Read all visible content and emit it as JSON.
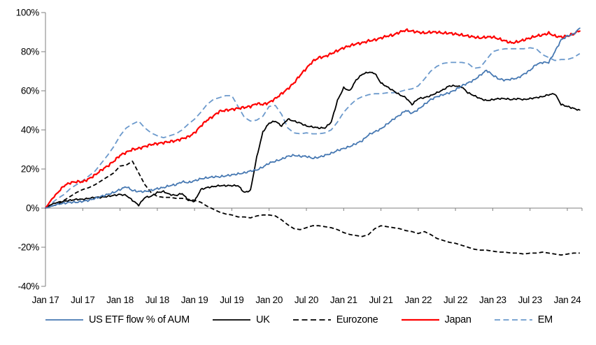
{
  "chart_data": {
    "type": "line",
    "title": "",
    "xlabel": "",
    "ylabel": "",
    "grid": false,
    "legend_position": "bottom",
    "axis_color": "#7f7f7f",
    "ylim": [
      -40,
      100
    ],
    "y_tick_labels": [
      "100%",
      "80%",
      "60%",
      "40%",
      "20%",
      "0%",
      "-20%",
      "-40%"
    ],
    "y_tick_values": [
      100,
      80,
      60,
      40,
      20,
      0,
      -20,
      -40
    ],
    "x_tick_labels": [
      "Jan 17",
      "Jul 17",
      "Jan 18",
      "Jul 18",
      "Jan 19",
      "Jul 19",
      "Jan 20",
      "Jul 20",
      "Jan 21",
      "Jul 21",
      "Jan 22",
      "Jul 22",
      "Jan 23",
      "Jul 23",
      "Jan 24"
    ],
    "x_tick_interval_months": 6,
    "x_unit": "month",
    "x_start": "Jan 2017",
    "x_end": "Mar 2024",
    "x_total_months": 86,
    "series": [
      {
        "id": "us",
        "name": "US ETF flow % of AUM",
        "color": "#4678b2",
        "style": "solid",
        "values": [
          0,
          1,
          2,
          2.5,
          3,
          3,
          3.5,
          4,
          5,
          6,
          7,
          8,
          9.5,
          11,
          9,
          8.5,
          8.5,
          9,
          10,
          10.5,
          11.5,
          12,
          13.5,
          13,
          14,
          15,
          15.5,
          16,
          16,
          16.5,
          17,
          17.5,
          18,
          19,
          19.5,
          21,
          23,
          24,
          25,
          26.5,
          27,
          26.5,
          26.5,
          25.5,
          26,
          27,
          28,
          29.5,
          30.5,
          31.5,
          33,
          34.5,
          37.5,
          39,
          40.5,
          43,
          45.5,
          47.5,
          50,
          48.5,
          50.5,
          53,
          55.5,
          57,
          58,
          59,
          60.5,
          62.5,
          64,
          65.5,
          68,
          70.5,
          68,
          66,
          65.5,
          66,
          66.5,
          68.5,
          70.5,
          73.5,
          74.5,
          74.5,
          80,
          86,
          88,
          89,
          92
        ]
      },
      {
        "id": "uk",
        "name": "UK",
        "color": "#000000",
        "style": "solid",
        "values": [
          0,
          2,
          3,
          3.5,
          4,
          4.5,
          4.5,
          5,
          5.5,
          5.5,
          6,
          6.5,
          7,
          6.5,
          4,
          1.5,
          5.5,
          6,
          8,
          8.5,
          7,
          6.5,
          7.5,
          4,
          3.5,
          9.5,
          10.5,
          11,
          11.5,
          11.5,
          11.5,
          11.5,
          8,
          9,
          26,
          39,
          43.5,
          44.5,
          42,
          45.5,
          44.5,
          43.5,
          42,
          41.5,
          41,
          41,
          44,
          55,
          61.5,
          60,
          65.5,
          68.5,
          69.5,
          69,
          64,
          62,
          60,
          58,
          56.5,
          53,
          56,
          56.5,
          57.5,
          59,
          60.5,
          62.5,
          62.5,
          62,
          59,
          57.5,
          56,
          55,
          55.5,
          56,
          56,
          55.5,
          56,
          55.5,
          56,
          56.5,
          57,
          58,
          58.5,
          53,
          52,
          51,
          50
        ]
      },
      {
        "id": "eurozone",
        "name": "Eurozone",
        "color": "#000000",
        "style": "dashed",
        "values": [
          0,
          1,
          2,
          4,
          6,
          8,
          9.5,
          10.5,
          12,
          14,
          16,
          18,
          21.5,
          22,
          24,
          18,
          12,
          8,
          6,
          5.5,
          5.5,
          5,
          5,
          4.5,
          4,
          3,
          1,
          -0.5,
          -2,
          -3,
          -3.5,
          -4.5,
          -4.5,
          -5,
          -4,
          -3.5,
          -3.5,
          -4,
          -6,
          -8.5,
          -10.5,
          -11,
          -10,
          -9,
          -9,
          -9.5,
          -10,
          -11,
          -12.5,
          -13.5,
          -14,
          -14.5,
          -13.5,
          -10.5,
          -9,
          -9.5,
          -10,
          -10.5,
          -11.5,
          -12,
          -13,
          -12,
          -13.5,
          -15.5,
          -16.5,
          -17.5,
          -18,
          -19,
          -20,
          -21,
          -21.5,
          -21.5,
          -22,
          -22.5,
          -22.5,
          -23,
          -23,
          -23.5,
          -23,
          -23,
          -22.5,
          -23,
          -23.5,
          -24,
          -23.5,
          -23,
          -23
        ]
      },
      {
        "id": "japan",
        "name": "Japan",
        "color": "#fe0000",
        "style": "solid",
        "values": [
          0,
          4.5,
          8,
          11.5,
          13,
          13.5,
          13.5,
          15,
          17,
          19.5,
          21.5,
          24,
          27,
          28.5,
          30,
          30.5,
          31.5,
          32.5,
          33,
          33.5,
          34,
          34.5,
          35.5,
          36.5,
          38.5,
          42,
          45,
          47,
          49.5,
          50,
          50.5,
          51,
          51.5,
          52,
          53.5,
          53,
          54,
          56,
          58.5,
          61,
          64,
          68,
          71.5,
          75,
          77,
          77.5,
          79,
          80.5,
          82,
          83,
          84,
          84.5,
          85.5,
          86,
          87,
          88,
          88.5,
          90,
          91,
          90.5,
          90,
          89.5,
          90,
          90,
          89.5,
          89.5,
          89,
          88.5,
          88,
          87.5,
          87,
          87.5,
          87.5,
          86.5,
          85.5,
          84.5,
          85,
          86,
          87,
          88,
          88.5,
          89.5,
          88,
          87.5,
          88,
          89,
          91
        ]
      },
      {
        "id": "em",
        "name": "EM",
        "color": "#6b99cc",
        "style": "dashed",
        "values": [
          0,
          2.5,
          5,
          7,
          10,
          12,
          14,
          16.5,
          19,
          23,
          27,
          31.5,
          37,
          41,
          43,
          44.5,
          41,
          38.5,
          37,
          36,
          37,
          38,
          40,
          43,
          45.5,
          49,
          53,
          55.5,
          56.5,
          57.5,
          57.5,
          52,
          46.5,
          44.5,
          45,
          47,
          52,
          52.5,
          48,
          41,
          38.5,
          38,
          38.5,
          38,
          38,
          38.5,
          40,
          44,
          49,
          52.5,
          55.5,
          57,
          58,
          58.5,
          58.5,
          59,
          59,
          59.5,
          60.5,
          61,
          62.5,
          66,
          70,
          72.5,
          74,
          74.5,
          74.5,
          74.5,
          74,
          71.5,
          72,
          76,
          80,
          81,
          81.5,
          81.5,
          81.5,
          81.5,
          82,
          81.5,
          78.5,
          77,
          75.5,
          76,
          76,
          77,
          79
        ]
      }
    ]
  }
}
